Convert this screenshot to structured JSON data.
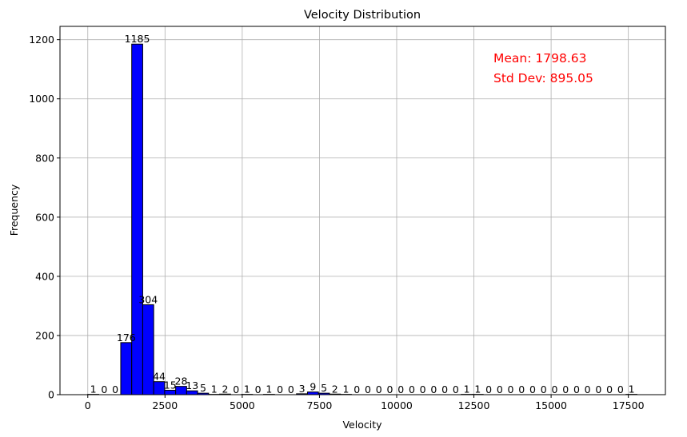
{
  "chart_data": {
    "type": "bar",
    "title": "Velocity Distribution",
    "xlabel": "Velocity",
    "ylabel": "Frequency",
    "bin_start": 0,
    "bin_width": 355.6,
    "counts": [
      1,
      0,
      0,
      176,
      1185,
      304,
      44,
      15,
      28,
      13,
      5,
      1,
      2,
      0,
      1,
      0,
      1,
      0,
      0,
      3,
      9,
      5,
      2,
      1,
      0,
      0,
      0,
      0,
      0,
      0,
      0,
      0,
      0,
      0,
      1,
      1,
      0,
      0,
      0,
      0,
      0,
      0,
      0,
      0,
      0,
      0,
      0,
      0,
      0,
      1
    ],
    "xlim": [
      -900,
      18700
    ],
    "ylim": [
      0,
      1245
    ],
    "xticks": [
      0,
      2500,
      5000,
      7500,
      10000,
      12500,
      15000,
      17500
    ],
    "xtick_labels": [
      "0",
      "2500",
      "5000",
      "7500",
      "10000",
      "12500",
      "15000",
      "17500"
    ],
    "yticks": [
      0,
      200,
      400,
      600,
      800,
      1000,
      1200
    ],
    "ytick_labels": [
      "0",
      "200",
      "400",
      "600",
      "800",
      "1000",
      "1200"
    ],
    "grid": true,
    "annotations": [
      "Mean: 1798.63",
      "Std Dev: 895.05"
    ],
    "colors": {
      "bar": "#0000ff",
      "edge": "#000000",
      "annotation": "#ff0000",
      "grid": "#b0b0b0"
    }
  }
}
